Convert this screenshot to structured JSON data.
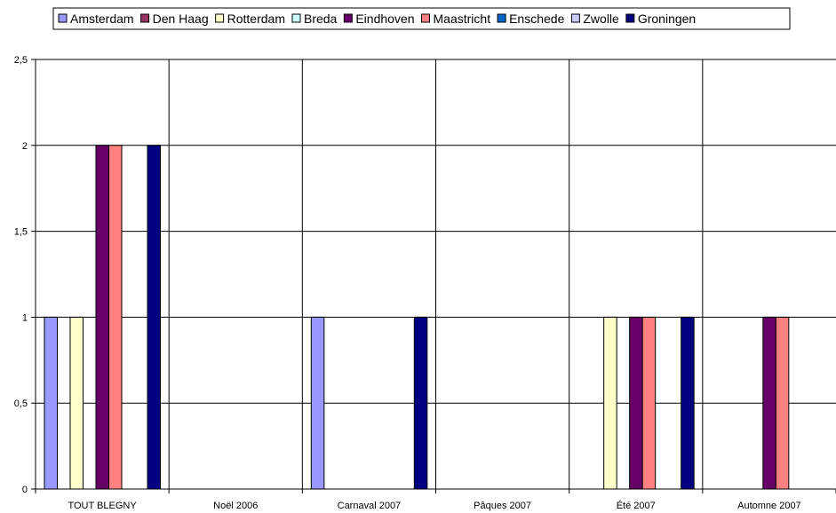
{
  "chart_data": {
    "type": "bar",
    "categories": [
      "TOUT BLEGNY",
      "Noël 2006",
      "Carnaval 2007",
      "Pâques 2007",
      "Été 2007",
      "Automne 2007"
    ],
    "series": [
      {
        "name": "Amsterdam",
        "color": "#9999ff",
        "values": [
          1,
          0,
          1,
          0,
          0,
          0
        ]
      },
      {
        "name": "Den Haag",
        "color": "#993366",
        "values": [
          0,
          0,
          0,
          0,
          0,
          0
        ]
      },
      {
        "name": "Rotterdam",
        "color": "#ffffcc",
        "values": [
          1,
          0,
          0,
          0,
          1,
          0
        ]
      },
      {
        "name": "Breda",
        "color": "#ccffff",
        "values": [
          0,
          0,
          0,
          0,
          0,
          0
        ]
      },
      {
        "name": "Eindhoven",
        "color": "#660066",
        "values": [
          2,
          0,
          0,
          0,
          1,
          1
        ]
      },
      {
        "name": "Maastricht",
        "color": "#ff8080",
        "values": [
          2,
          0,
          0,
          0,
          1,
          1
        ]
      },
      {
        "name": "Enschede",
        "color": "#0066cc",
        "values": [
          0,
          0,
          0,
          0,
          0,
          0
        ]
      },
      {
        "name": "Zwolle",
        "color": "#ccccff",
        "values": [
          0,
          0,
          0,
          0,
          0,
          0
        ]
      },
      {
        "name": "Groningen",
        "color": "#000080",
        "values": [
          2,
          0,
          1,
          0,
          1,
          0
        ]
      }
    ],
    "yticks": [
      "0",
      "0,5",
      "1",
      "1,5",
      "2",
      "2,5"
    ],
    "ylim": [
      0,
      2.5
    ],
    "grid": true,
    "legend_position": "top"
  }
}
